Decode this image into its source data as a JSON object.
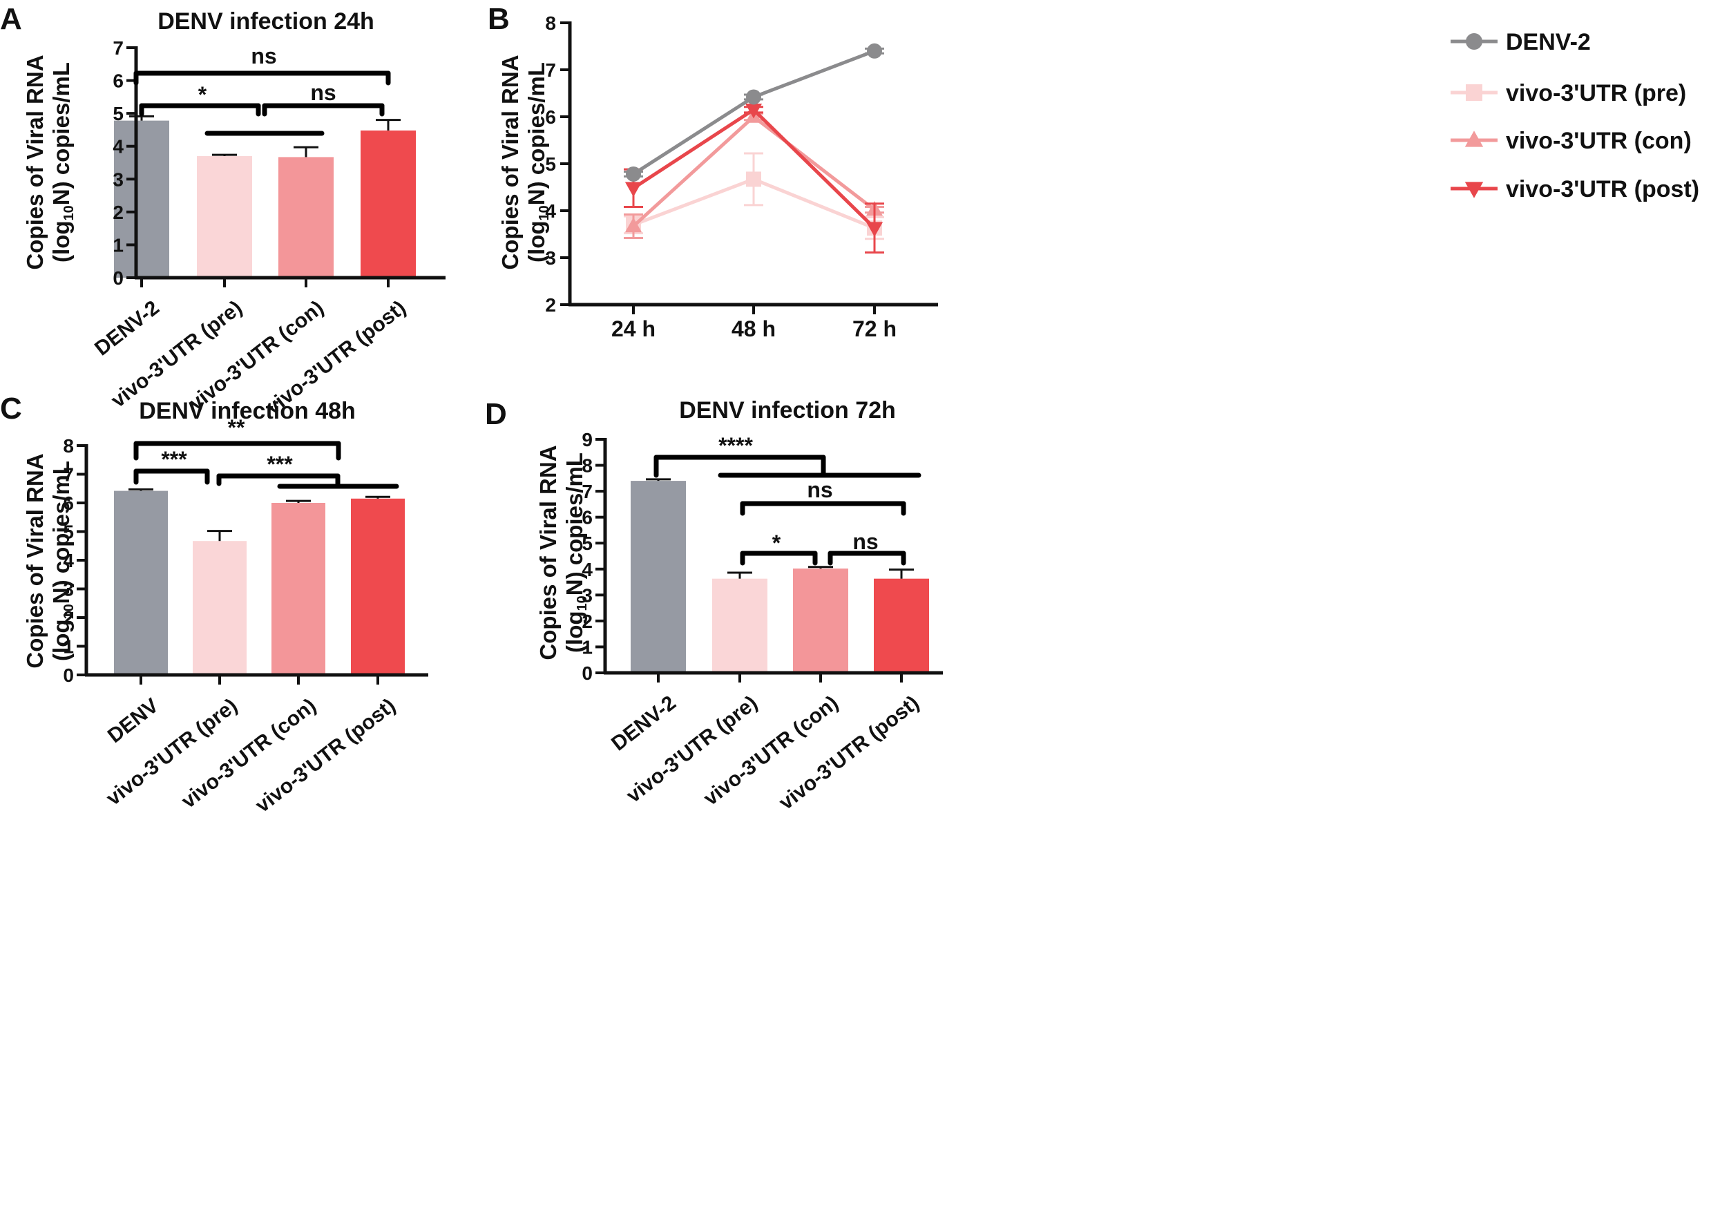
{
  "colors": {
    "DENV": "#969aa3",
    "pre": "#fad6d7",
    "con": "#f39699",
    "post": "#ef4a4e",
    "line_denv": "#8b8b8d",
    "line_pre": "#fad3d3",
    "line_con": "#f29a9b",
    "line_post": "#e8464b",
    "axis": "#111111"
  },
  "chart_data": [
    {
      "panel": "A",
      "type": "bar",
      "title": "DENV infection 24h",
      "ylabel_line1": "Copies of Viral RNA",
      "ylabel_line2_pre": "(log",
      "ylabel_line2_sub": "10",
      "ylabel_line2_post": "N) copies/mL",
      "ylim": [
        0,
        7
      ],
      "yticks": [
        "0",
        "1",
        "2",
        "3",
        "4",
        "5",
        "6",
        "7"
      ],
      "categories": [
        "DENV-2",
        "vivo-3'UTR (pre)",
        "vivo-3'UTR (con)",
        "vivo-3'UTR (post)"
      ],
      "values": [
        4.78,
        3.7,
        3.67,
        4.48
      ],
      "errors": [
        0.13,
        0.04,
        0.3,
        0.32
      ],
      "color_keys": [
        "DENV",
        "pre",
        "con",
        "post"
      ],
      "significance": [
        {
          "label": "ns"
        },
        {
          "label": "*"
        },
        {
          "label": "ns"
        }
      ]
    },
    {
      "panel": "B",
      "type": "line",
      "ylabel_line1": "Copies of Viral RNA",
      "ylabel_line2_pre": "(log",
      "ylabel_line2_sub": "10",
      "ylabel_line2_post": "N) copies/mL",
      "ylim": [
        2,
        8
      ],
      "yticks": [
        "2",
        "3",
        "4",
        "5",
        "6",
        "7",
        "8"
      ],
      "x": [
        "24 h",
        "48 h",
        "72 h"
      ],
      "series": [
        {
          "name": "DENV-2",
          "values": [
            4.78,
            6.42,
            7.4
          ],
          "errors": [
            0.05,
            0.05,
            0.05
          ],
          "marker": "circle",
          "color_key": "line_denv"
        },
        {
          "name": "vivo-3'UTR (pre)",
          "values": [
            3.7,
            4.67,
            3.63
          ],
          "errors": [
            0.18,
            0.55,
            0.23
          ],
          "marker": "square",
          "color_key": "line_pre"
        },
        {
          "name": "vivo-3'UTR (con)",
          "values": [
            3.67,
            6.0,
            4.02
          ],
          "errors": [
            0.25,
            0.07,
            0.06
          ],
          "marker": "triangle-up",
          "color_key": "line_con"
        },
        {
          "name": "vivo-3'UTR (post)",
          "values": [
            4.48,
            6.15,
            3.63
          ],
          "errors": [
            0.4,
            0.06,
            0.52
          ],
          "marker": "triangle-down",
          "color_key": "line_post"
        }
      ],
      "legend": "top-right"
    },
    {
      "panel": "C",
      "type": "bar",
      "title": "DENV infection 48h",
      "ylabel_line1": "Copies of Viral RNA",
      "ylabel_line2_pre": "(log",
      "ylabel_line2_sub": "10",
      "ylabel_line2_post": "N) copies/mL",
      "ylim": [
        0,
        8
      ],
      "yticks": [
        "0",
        "1",
        "2",
        "3",
        "4",
        "5",
        "6",
        "7",
        "8"
      ],
      "categories": [
        "DENV",
        "vivo-3'UTR (pre)",
        "vivo-3'UTR (con)",
        "vivo-3'UTR (post)"
      ],
      "values": [
        6.42,
        4.67,
        6.0,
        6.15
      ],
      "errors": [
        0.05,
        0.35,
        0.07,
        0.06
      ],
      "color_keys": [
        "DENV",
        "pre",
        "con",
        "post"
      ],
      "significance": [
        {
          "label": "**"
        },
        {
          "label": "***"
        },
        {
          "label": "***"
        }
      ]
    },
    {
      "panel": "D",
      "type": "bar",
      "title": "DENV infection 72h",
      "ylabel_line1": "Copies of Viral RNA",
      "ylabel_line2_pre": "(log",
      "ylabel_line2_sub": "10",
      "ylabel_line2_post": "N) copies/mL",
      "ylim": [
        0,
        9
      ],
      "yticks": [
        "0",
        "1",
        "2",
        "3",
        "4",
        "5",
        "6",
        "7",
        "8",
        "9"
      ],
      "categories": [
        "DENV-2",
        "vivo-3'UTR (pre)",
        "vivo-3'UTR (con)",
        "vivo-3'UTR (post)"
      ],
      "values": [
        7.4,
        3.63,
        4.02,
        3.63
      ],
      "errors": [
        0.06,
        0.23,
        0.06,
        0.35
      ],
      "color_keys": [
        "DENV",
        "pre",
        "con",
        "post"
      ],
      "significance": [
        {
          "label": "****"
        },
        {
          "label": "ns"
        },
        {
          "label": "*"
        },
        {
          "label": "ns"
        }
      ]
    }
  ]
}
